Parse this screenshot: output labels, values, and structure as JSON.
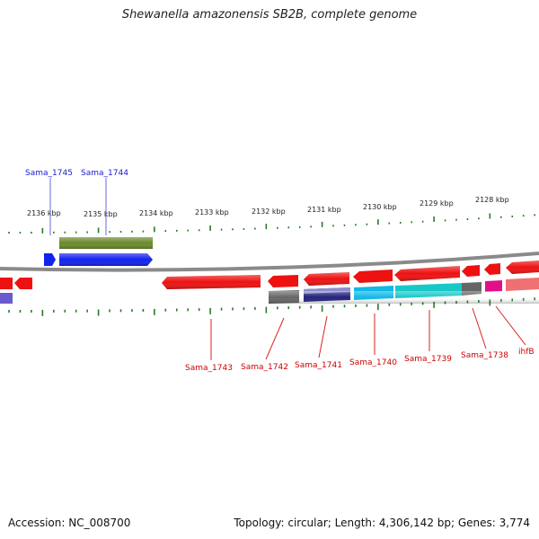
{
  "title": "Shewanella amazonensis SB2B, complete genome",
  "footer": {
    "accession": "Accession: NC_008700",
    "info": "Topology: circular; Length: 4,306,142 bp; Genes: 3,774"
  },
  "scale": {
    "ticks": [
      "2136 kbp",
      "2135 kbp",
      "2134 kbp",
      "2133 kbp",
      "2132 kbp",
      "2131 kbp",
      "2130 kbp",
      "2129 kbp",
      "2128 kbp"
    ]
  },
  "genes_top": [
    "Sama_1745",
    "Sama_1744"
  ],
  "genes_bottom": [
    "Sama_1743",
    "Sama_1742",
    "Sama_1741",
    "Sama_1740",
    "Sama_1739",
    "Sama_1738",
    "ihfB"
  ],
  "colors": {
    "top_label": "#1a1acc",
    "bottom_label": "#cc0000",
    "tick": "#2a7a2a",
    "backbone": "#888888",
    "gene_red": "#ee1111",
    "gene_blue": "#1122ee",
    "gene_olive": "#6b8a2a",
    "gene_gray": "#666666",
    "gene_navy": "#22227a",
    "gene_cyan": "#11b8e8",
    "gene_teal": "#18c8c8",
    "gene_magenta": "#e0108a",
    "gene_salmon": "#ee7070",
    "gene_purple": "#6a5acd"
  }
}
